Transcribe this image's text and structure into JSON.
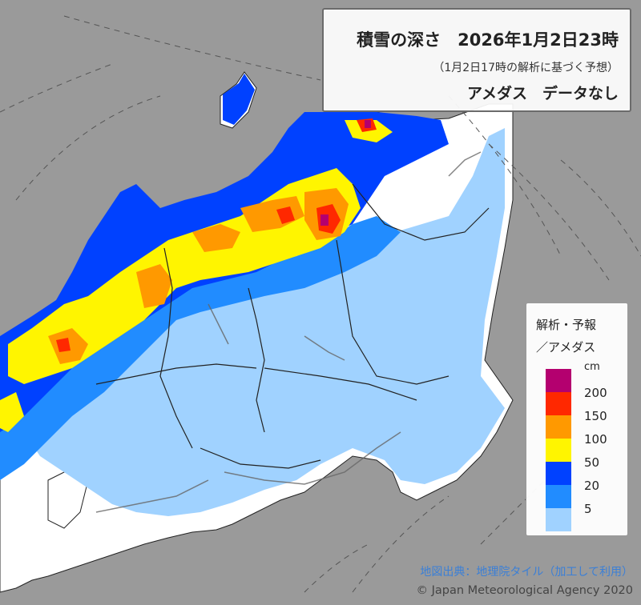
{
  "title": {
    "main": "積雪の深さ　2026年1月2日23時",
    "sub": "（1月2日17時の解析に基づく予想）",
    "nodata": "アメダス　データなし"
  },
  "legend": {
    "header1": "解析・予報",
    "header2": "／アメダス",
    "unit": "cm",
    "levels": [
      {
        "label": "",
        "color": "#b4006f"
      },
      {
        "label": "200",
        "color": "#ff2800"
      },
      {
        "label": "150",
        "color": "#ff9900"
      },
      {
        "label": "100",
        "color": "#fff500"
      },
      {
        "label": "50",
        "color": "#0041ff"
      },
      {
        "label": "20",
        "color": "#218cff"
      },
      {
        "label": "5",
        "color": "#a0d2ff"
      }
    ]
  },
  "credits": {
    "tiles": "地図出典：地理院タイル（加工して利用）",
    "copyright": "© Japan Meteorological Agency 2020"
  },
  "colors": {
    "sea": "#9a9a9a",
    "land": "#ffffff",
    "deep_purple": "#b4006f",
    "red": "#ff2800",
    "orange": "#ff9900",
    "yellow": "#fff500",
    "blue": "#0041ff",
    "mid_blue": "#218cff",
    "light_blue": "#a0d2ff"
  }
}
